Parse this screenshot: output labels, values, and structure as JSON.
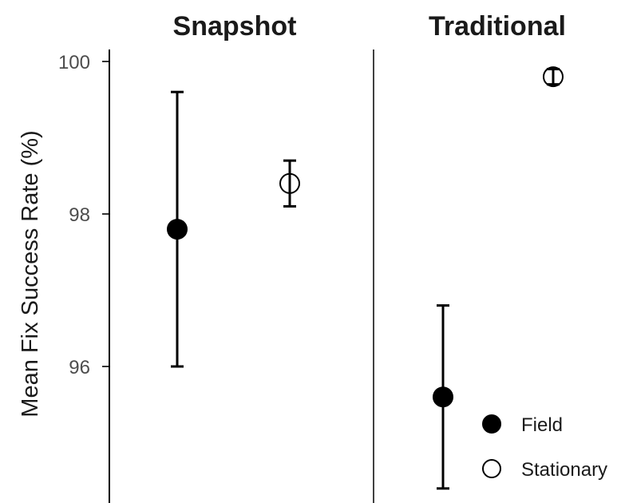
{
  "chart_data": {
    "type": "scatter",
    "subtype": "point-errorbar",
    "ylabel": "Mean Fix Success Rate (%)",
    "xlabel": "",
    "ylim": [
      94.3,
      100.3
    ],
    "yticks": [
      96,
      98,
      100
    ],
    "grid": false,
    "legend_position": "bottom-right",
    "panels": [
      {
        "title": "Snapshot",
        "points": [
          {
            "series": "Field",
            "mean": 97.8,
            "lower": 96.0,
            "upper": 99.6
          },
          {
            "series": "Stationary",
            "mean": 98.4,
            "lower": 98.1,
            "upper": 98.7
          }
        ]
      },
      {
        "title": "Traditional",
        "points": [
          {
            "series": "Field",
            "mean": 95.6,
            "lower": 94.4,
            "upper": 96.8
          },
          {
            "series": "Stationary",
            "mean": 99.8,
            "lower": 99.7,
            "upper": 99.9
          }
        ]
      }
    ],
    "series": [
      {
        "name": "Field",
        "marker": "filled-circle",
        "color": "#000000"
      },
      {
        "name": "Stationary",
        "marker": "open-circle",
        "color": "#000000"
      }
    ]
  }
}
